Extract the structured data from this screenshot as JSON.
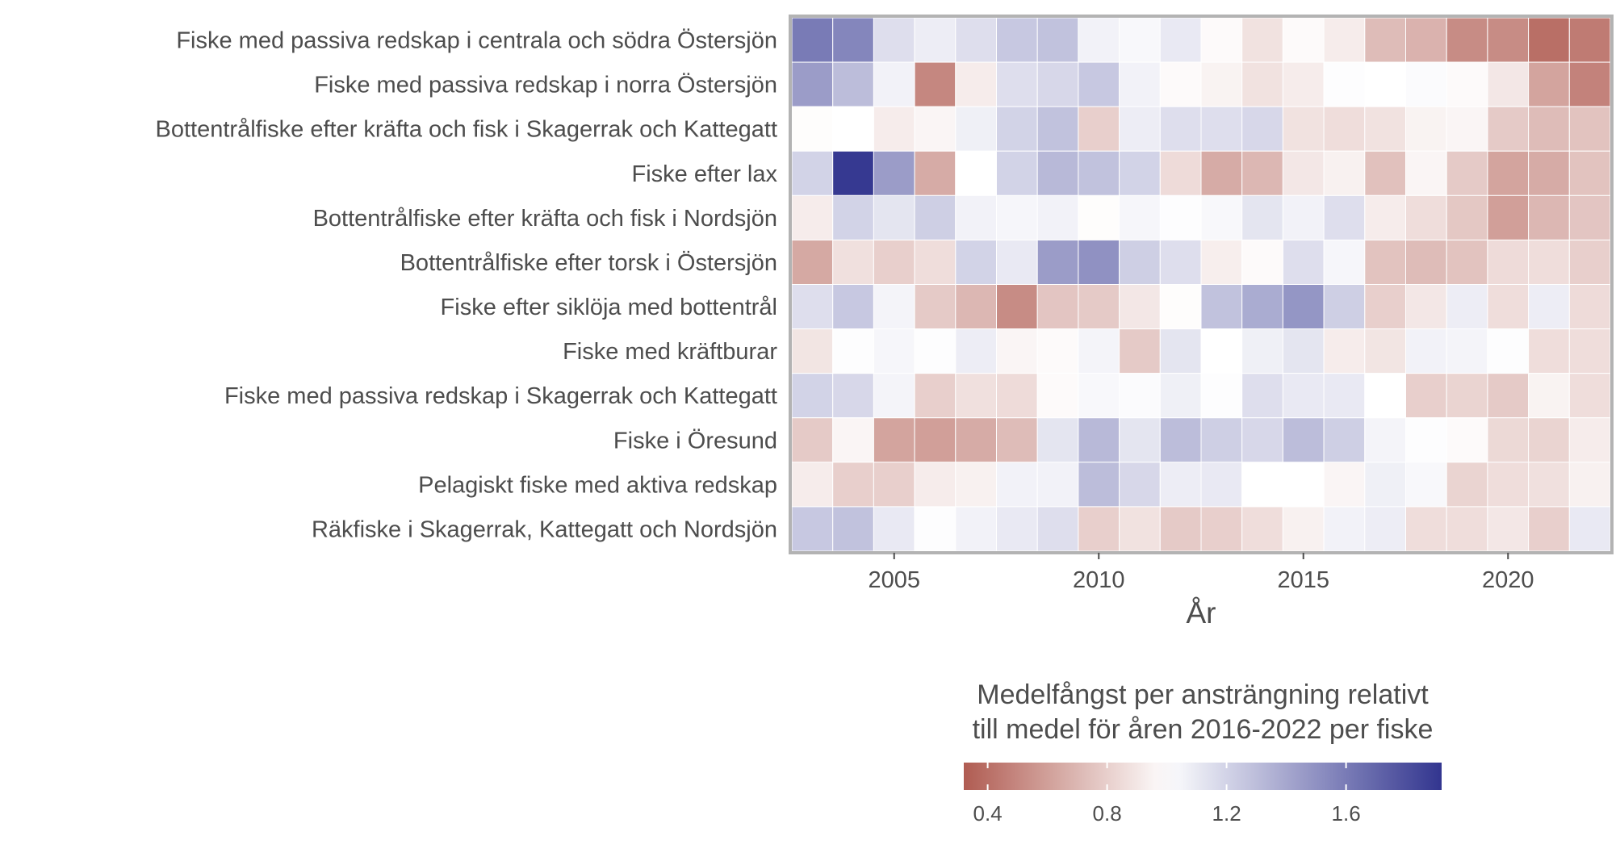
{
  "chart_data": {
    "type": "heatmap",
    "xlabel": "År",
    "x": [
      2003,
      2004,
      2005,
      2006,
      2007,
      2008,
      2009,
      2010,
      2011,
      2012,
      2013,
      2014,
      2015,
      2016,
      2017,
      2018,
      2019,
      2020,
      2021,
      2022
    ],
    "x_ticks": [
      2005,
      2010,
      2015,
      2020
    ],
    "rows": [
      "Fiske med passiva redskap i centrala och södra Östersjön",
      "Fiske med passiva redskap i norra Östersjön",
      "Bottentrålfiske efter kräfta och fisk i Skagerrak och Kattegatt",
      "Fiske efter lax",
      "Bottentrålfiske efter kräfta och fisk i Nordsjön",
      "Bottentrålfiske efter torsk i Östersjön",
      "Fiske efter siklöja med bottentrål",
      "Fiske med kräftburar",
      "Fiske med passiva redskap i Skagerrak och Kattegatt",
      "Fiske i Öresund",
      "Pelagiskt fiske med aktiva redskap",
      "Räkfiske i Skagerrak, Kattegatt och Nordsjön"
    ],
    "values": [
      [
        1.6,
        1.55,
        1.15,
        1.08,
        1.15,
        1.25,
        1.28,
        1.06,
        1.03,
        1.1,
        0.98,
        0.88,
        0.98,
        0.92,
        0.72,
        0.68,
        0.52,
        0.52,
        0.4,
        0.45
      ],
      [
        1.45,
        1.3,
        1.06,
        0.5,
        0.92,
        1.15,
        1.18,
        1.25,
        1.06,
        0.98,
        0.95,
        0.88,
        0.92,
        1.01,
        1.0,
        1.02,
        0.98,
        0.9,
        0.62,
        0.48
      ],
      [
        0.99,
        1.0,
        0.92,
        0.96,
        1.07,
        1.2,
        1.28,
        0.8,
        1.08,
        1.15,
        1.15,
        1.18,
        0.88,
        0.86,
        0.88,
        0.95,
        0.96,
        0.78,
        0.72,
        0.75
      ],
      [
        1.2,
        1.9,
        1.45,
        0.65,
        1.0,
        1.2,
        1.32,
        1.28,
        1.2,
        0.85,
        0.65,
        0.7,
        0.9,
        0.94,
        0.74,
        0.96,
        0.78,
        0.62,
        0.65,
        0.75
      ],
      [
        0.92,
        1.2,
        1.12,
        1.22,
        1.06,
        1.04,
        1.06,
        0.99,
        1.04,
        1.01,
        1.03,
        1.12,
        1.06,
        1.15,
        0.92,
        0.86,
        0.77,
        0.6,
        0.7,
        0.76
      ],
      [
        0.64,
        0.87,
        0.8,
        0.86,
        1.2,
        1.1,
        1.45,
        1.5,
        1.22,
        1.15,
        0.93,
        0.98,
        1.15,
        1.04,
        0.75,
        0.72,
        0.75,
        0.85,
        0.86,
        0.8
      ],
      [
        1.15,
        1.25,
        1.05,
        0.78,
        0.7,
        0.52,
        0.76,
        0.78,
        0.9,
        0.99,
        1.28,
        1.38,
        1.48,
        1.22,
        0.8,
        0.9,
        1.08,
        0.86,
        1.08,
        0.85
      ],
      [
        0.89,
        1.01,
        1.04,
        1.01,
        1.08,
        0.96,
        0.98,
        1.05,
        0.78,
        1.12,
        1.0,
        1.07,
        1.12,
        0.92,
        0.89,
        1.06,
        1.05,
        1.01,
        0.86,
        0.86
      ],
      [
        1.2,
        1.18,
        1.05,
        0.8,
        0.87,
        0.85,
        0.98,
        1.03,
        1.02,
        1.07,
        1.01,
        1.15,
        1.1,
        1.1,
        1.0,
        0.8,
        0.82,
        0.78,
        0.95,
        0.86
      ],
      [
        0.78,
        0.96,
        0.62,
        0.6,
        0.65,
        0.72,
        1.12,
        1.32,
        1.12,
        1.3,
        1.22,
        1.18,
        1.3,
        1.22,
        1.05,
        1.01,
        0.98,
        0.84,
        0.82,
        0.92
      ],
      [
        0.92,
        0.8,
        0.8,
        0.92,
        0.94,
        1.06,
        1.06,
        1.3,
        1.18,
        1.08,
        1.1,
        1.0,
        1.0,
        0.96,
        1.07,
        1.03,
        0.82,
        0.86,
        0.87,
        0.94
      ],
      [
        1.25,
        1.28,
        1.1,
        1.01,
        1.06,
        1.1,
        1.15,
        0.8,
        0.88,
        0.78,
        0.8,
        0.86,
        0.94,
        1.06,
        1.08,
        0.86,
        0.86,
        0.9,
        0.8,
        1.1
      ]
    ],
    "legend": {
      "title_line1": "Medelfångst per ansträngning relativt",
      "title_line2": "till medel för åren 2016-2022 per fiske",
      "ticks": [
        0.4,
        0.8,
        1.2,
        1.6
      ],
      "tick_labels": [
        "0.4",
        "0.8",
        "1.2",
        "1.6"
      ],
      "range": [
        0.32,
        1.92
      ],
      "colors": {
        "low": "#b05c52",
        "mid": "#ffffff",
        "high": "#32358f"
      }
    },
    "panel_border_color": "#b3b3b3",
    "grid": false
  }
}
